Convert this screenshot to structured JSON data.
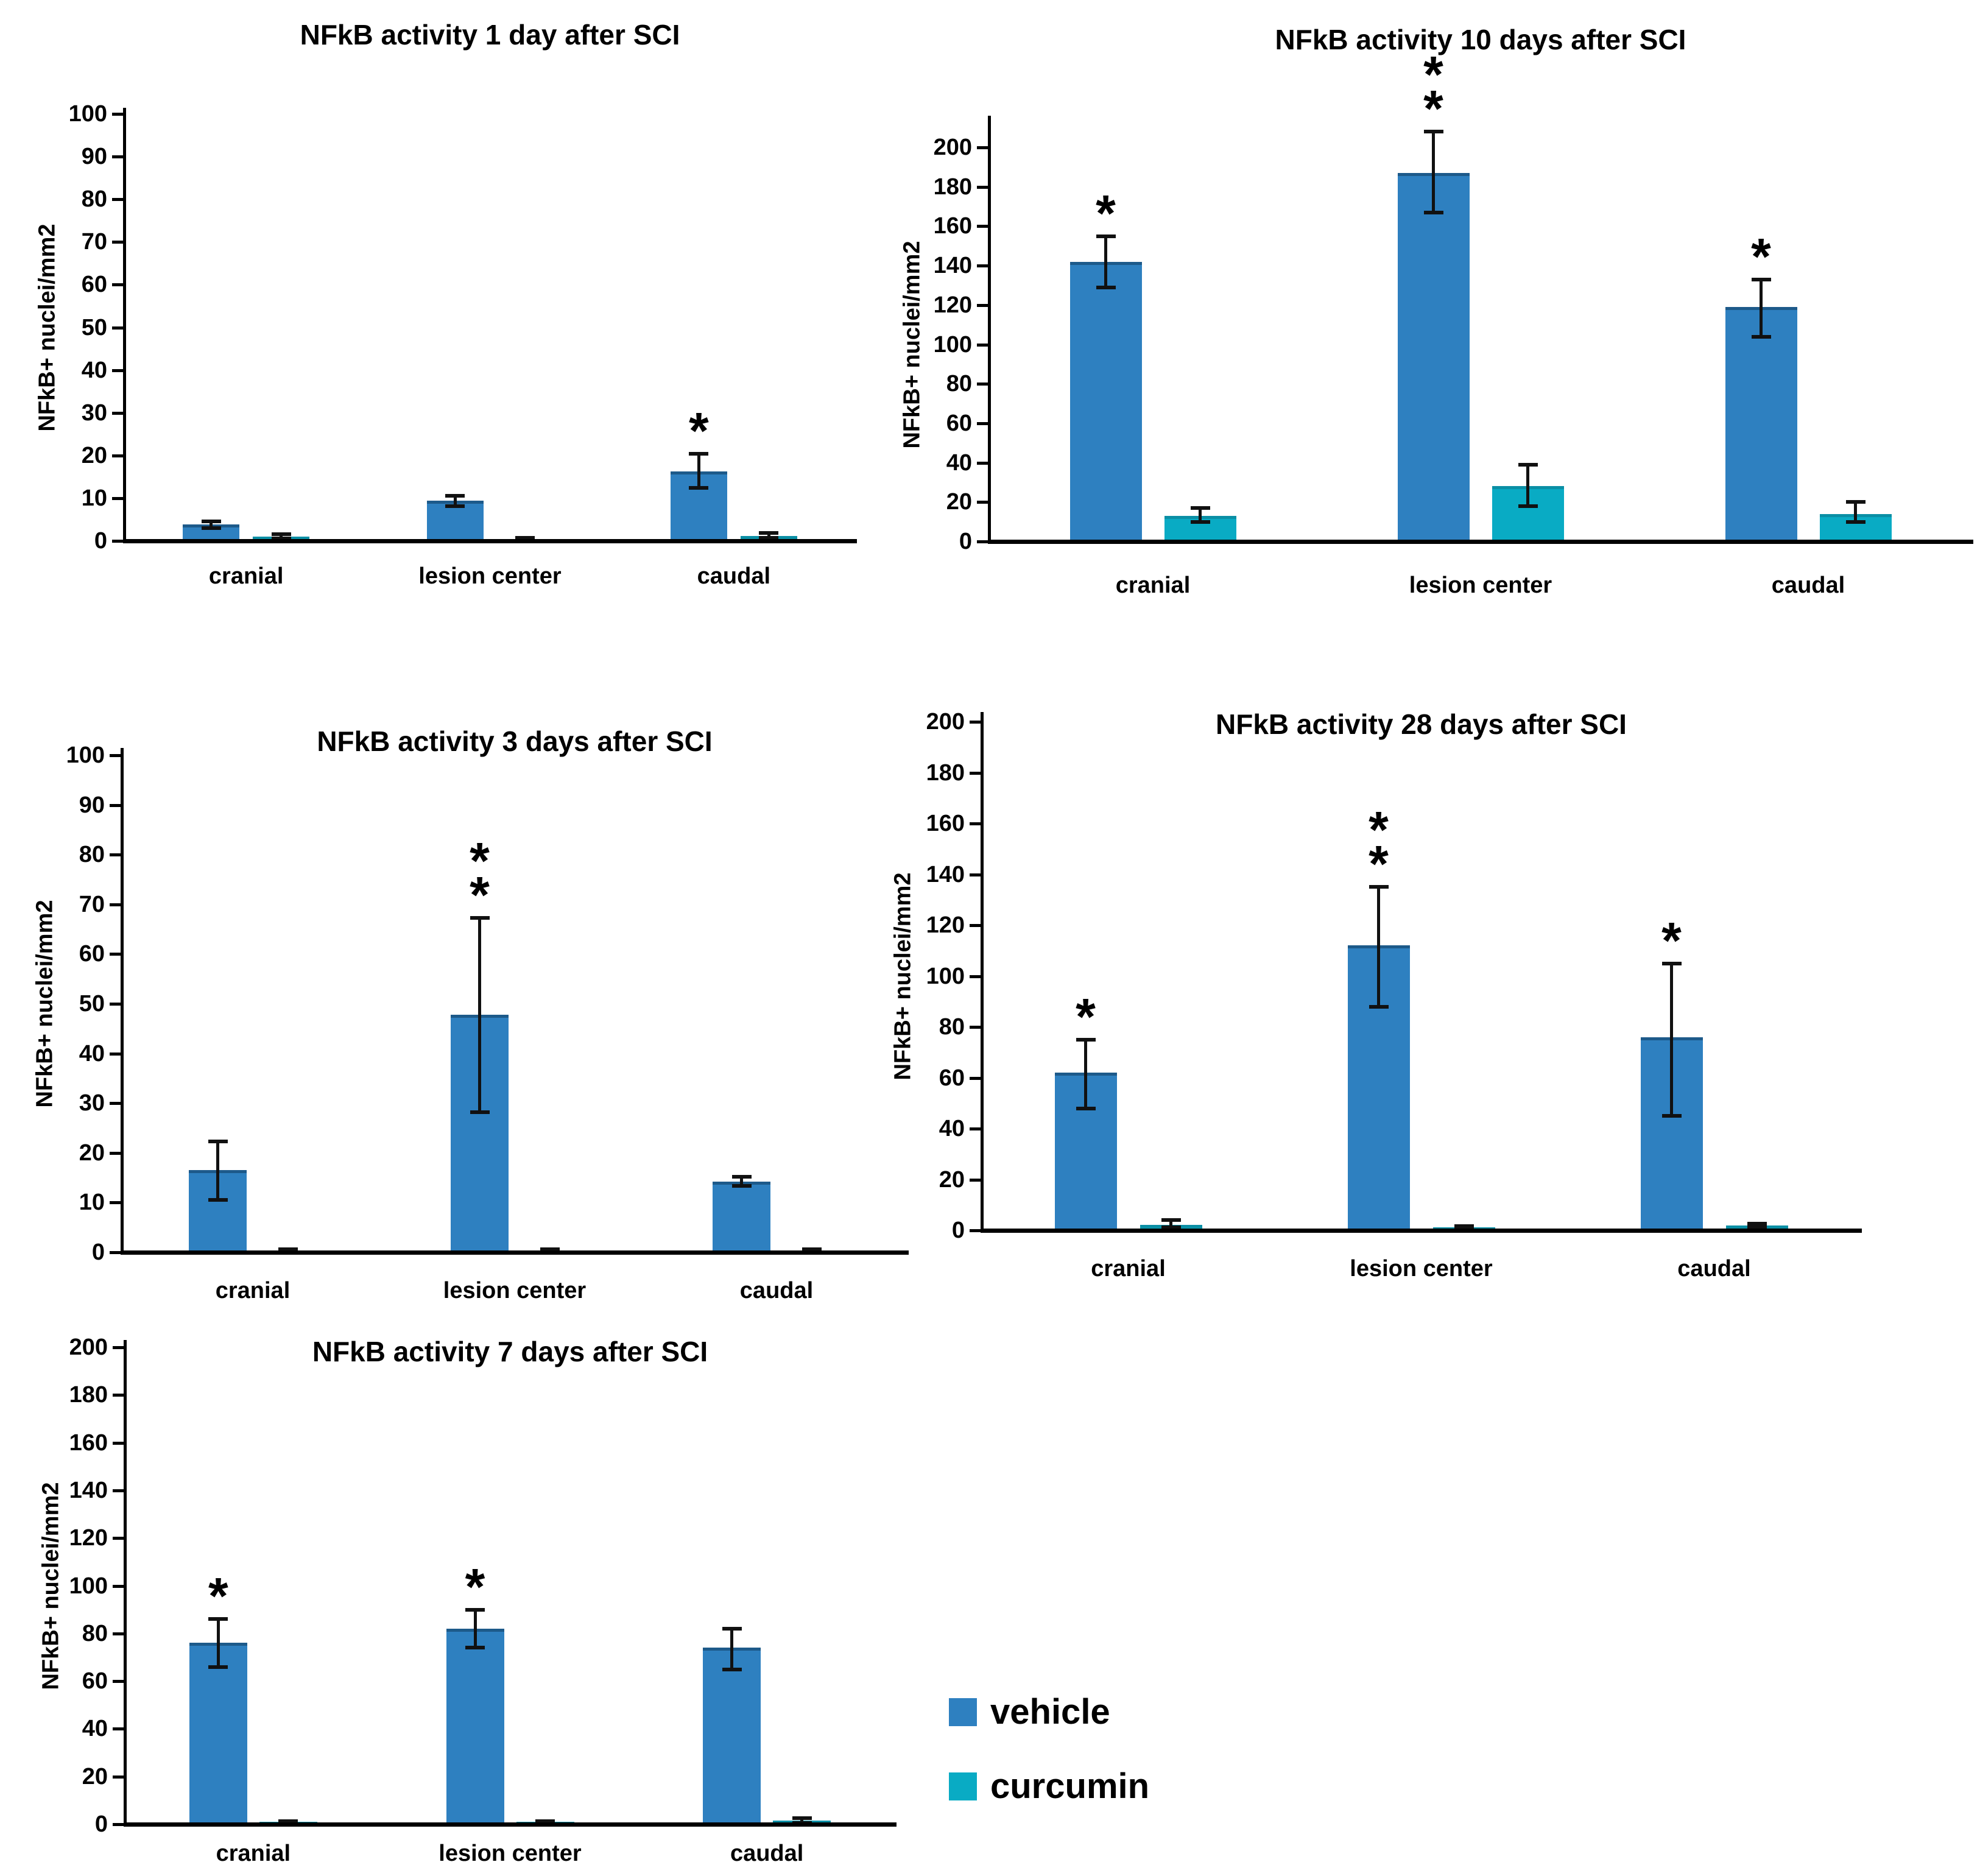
{
  "figure": {
    "background": "#ffffff",
    "kind": "five-panel bar chart figure"
  },
  "colors": {
    "vehicle": "#2e80c0",
    "vehicle_edge": "#1d5a8a",
    "curcumin": "#09abc4",
    "curcumin_edge": "#0a8fa5",
    "axis": "#000000",
    "error_bar": "#111111",
    "text": "#000000"
  },
  "legend": {
    "items": [
      {
        "label": "vehicle",
        "color_key": "vehicle"
      },
      {
        "label": "curcumin",
        "color_key": "curcumin"
      }
    ]
  },
  "chart_data": [
    {
      "id": "day-1",
      "type": "bar",
      "title": "NFkB activity 1 day after SCI",
      "xlabel": "",
      "ylabel": "NFkB+ nuclei/mm2",
      "ylim": [
        0,
        100
      ],
      "ystep": 10,
      "grid": false,
      "categories": [
        "cranial",
        "lesion center",
        "caudal"
      ],
      "series": [
        {
          "name": "vehicle",
          "values": [
            3.8,
            9.4,
            16.3
          ],
          "err_low": [
            3.0,
            8.2,
            12.4
          ],
          "err_high": [
            4.6,
            10.6,
            20.4
          ]
        },
        {
          "name": "curcumin",
          "values": [
            1.0,
            0.4,
            1.2
          ],
          "err_low": [
            0.6,
            0.2,
            0.7
          ],
          "err_high": [
            1.5,
            0.7,
            1.8
          ]
        }
      ],
      "significance": [
        "",
        "",
        "*"
      ]
    },
    {
      "id": "day-10",
      "type": "bar",
      "title": "NFkB activity 10 days after SCI",
      "xlabel": "",
      "ylabel": "NFkB+ nuclei/mm2",
      "ylim": [
        0,
        200
      ],
      "ystep": 20,
      "grid": false,
      "categories": [
        "cranial",
        "lesion center",
        "caudal"
      ],
      "series": [
        {
          "name": "vehicle",
          "values": [
            142,
            187,
            119
          ],
          "err_low": [
            129,
            167,
            104
          ],
          "err_high": [
            155,
            208,
            133
          ]
        },
        {
          "name": "curcumin",
          "values": [
            13,
            28,
            14
          ],
          "err_low": [
            10,
            18,
            10
          ],
          "err_high": [
            17,
            39,
            20
          ]
        }
      ],
      "significance": [
        "*",
        "**",
        "*"
      ]
    },
    {
      "id": "day-3",
      "type": "bar",
      "title": "NFkB activity 3 days after SCI",
      "xlabel": "",
      "ylabel": "NFkB+ nuclei/mm2",
      "ylim": [
        0,
        100
      ],
      "ystep": 10,
      "grid": false,
      "categories": [
        "cranial",
        "lesion center",
        "caudal"
      ],
      "series": [
        {
          "name": "vehicle",
          "values": [
            16.5,
            47.8,
            14.2
          ],
          "err_low": [
            10.5,
            28.2,
            13.3
          ],
          "err_high": [
            22.3,
            67.3,
            15.2
          ]
        },
        {
          "name": "curcumin",
          "values": [
            0.4,
            0.4,
            0.4
          ],
          "err_low": [
            0.2,
            0.2,
            0.2
          ],
          "err_high": [
            0.6,
            0.6,
            0.6
          ]
        }
      ],
      "significance": [
        "",
        "**",
        ""
      ]
    },
    {
      "id": "day-28",
      "type": "bar",
      "title": "NFkB activity 28 days after SCI",
      "xlabel": "",
      "ylabel": "NFkB+ nuclei/mm2",
      "ylim": [
        0,
        200
      ],
      "ystep": 20,
      "grid": false,
      "categories": [
        "cranial",
        "lesion center",
        "caudal"
      ],
      "series": [
        {
          "name": "vehicle",
          "values": [
            62,
            112,
            76
          ],
          "err_low": [
            48,
            88,
            45
          ],
          "err_high": [
            75,
            135,
            105
          ]
        },
        {
          "name": "curcumin",
          "values": [
            2.2,
            1.3,
            2.0
          ],
          "err_low": [
            1.2,
            1.0,
            1.5
          ],
          "err_high": [
            4.0,
            1.6,
            2.6
          ]
        }
      ],
      "significance": [
        "*",
        "**",
        "*"
      ]
    },
    {
      "id": "day-7",
      "type": "bar",
      "title": "NFkB activity 7 days after SCI",
      "xlabel": "",
      "ylabel": "NFkB+ nuclei/mm2",
      "ylim": [
        0,
        200
      ],
      "ystep": 20,
      "grid": false,
      "categories": [
        "cranial",
        "lesion center",
        "caudal"
      ],
      "series": [
        {
          "name": "vehicle",
          "values": [
            76,
            82,
            74
          ],
          "err_low": [
            66,
            74,
            65
          ],
          "err_high": [
            86,
            90,
            82
          ]
        },
        {
          "name": "curcumin",
          "values": [
            1.0,
            1.0,
            1.5
          ],
          "err_low": [
            0.8,
            0.8,
            0.6
          ],
          "err_high": [
            1.3,
            1.3,
            2.6
          ]
        }
      ],
      "significance": [
        "*",
        "*",
        ""
      ]
    }
  ]
}
